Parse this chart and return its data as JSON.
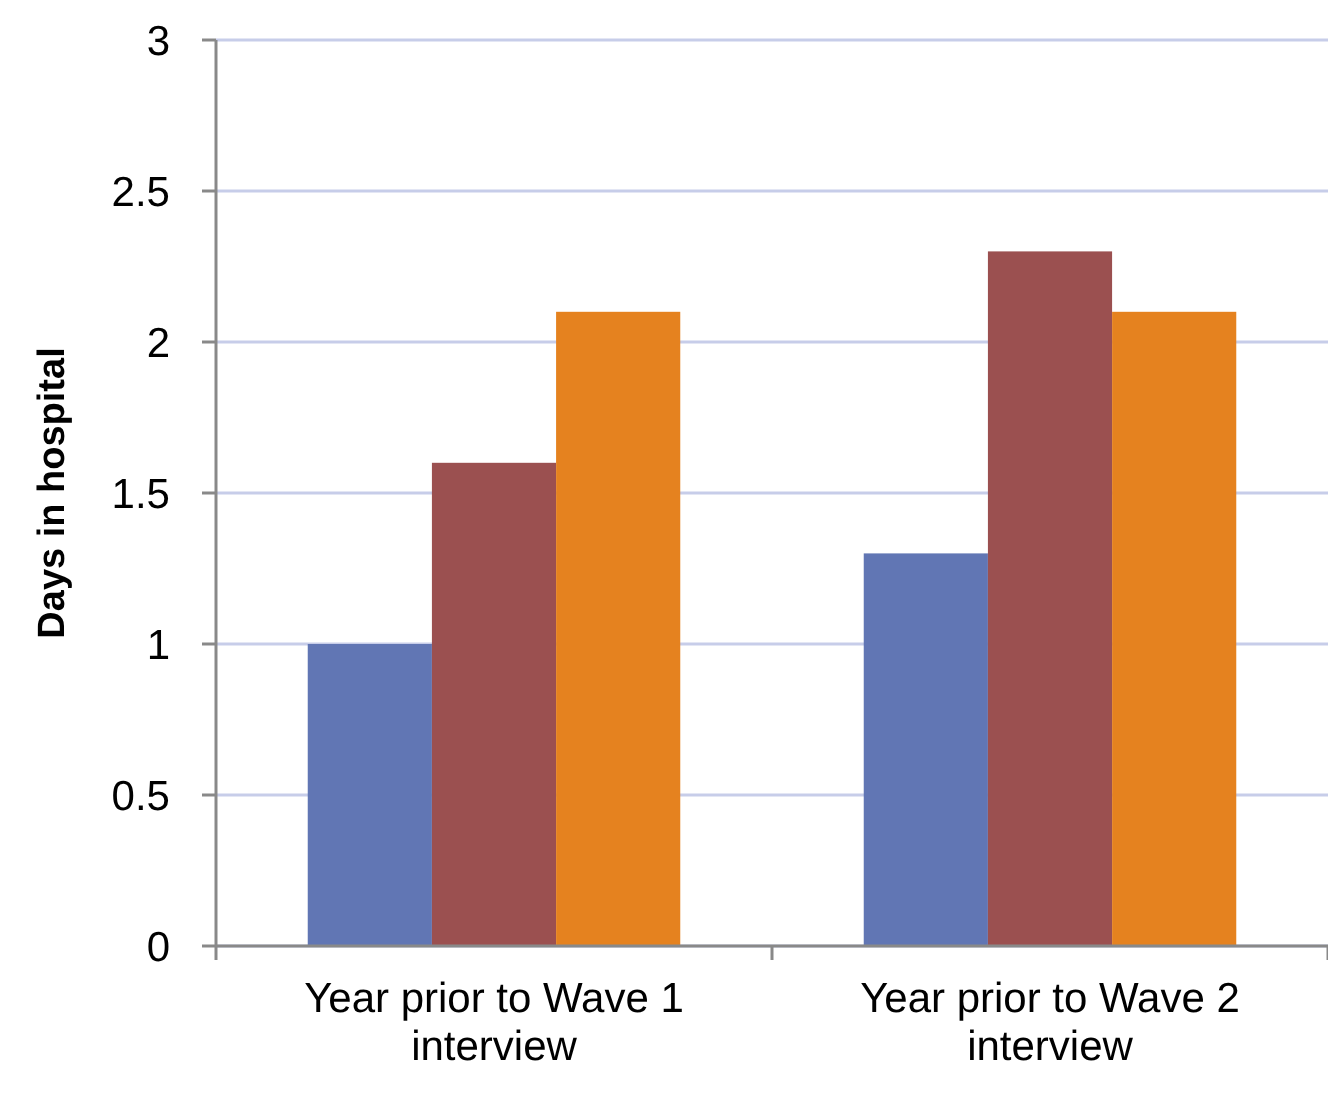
{
  "chart_data": {
    "type": "bar",
    "ylabel": "Days in hospital",
    "categories": [
      "Year prior to Wave 1 interview",
      "Year prior to Wave 2 interview"
    ],
    "series": [
      {
        "color": "#6176b4",
        "values": [
          1.0,
          1.3
        ]
      },
      {
        "color": "#9b5050",
        "values": [
          1.6,
          2.3
        ]
      },
      {
        "color": "#e5821f",
        "values": [
          2.1,
          2.1
        ]
      }
    ],
    "ylim": [
      0,
      3
    ],
    "yticks": [
      0,
      0.5,
      1,
      1.5,
      2,
      2.5,
      3
    ],
    "grid": "y"
  }
}
